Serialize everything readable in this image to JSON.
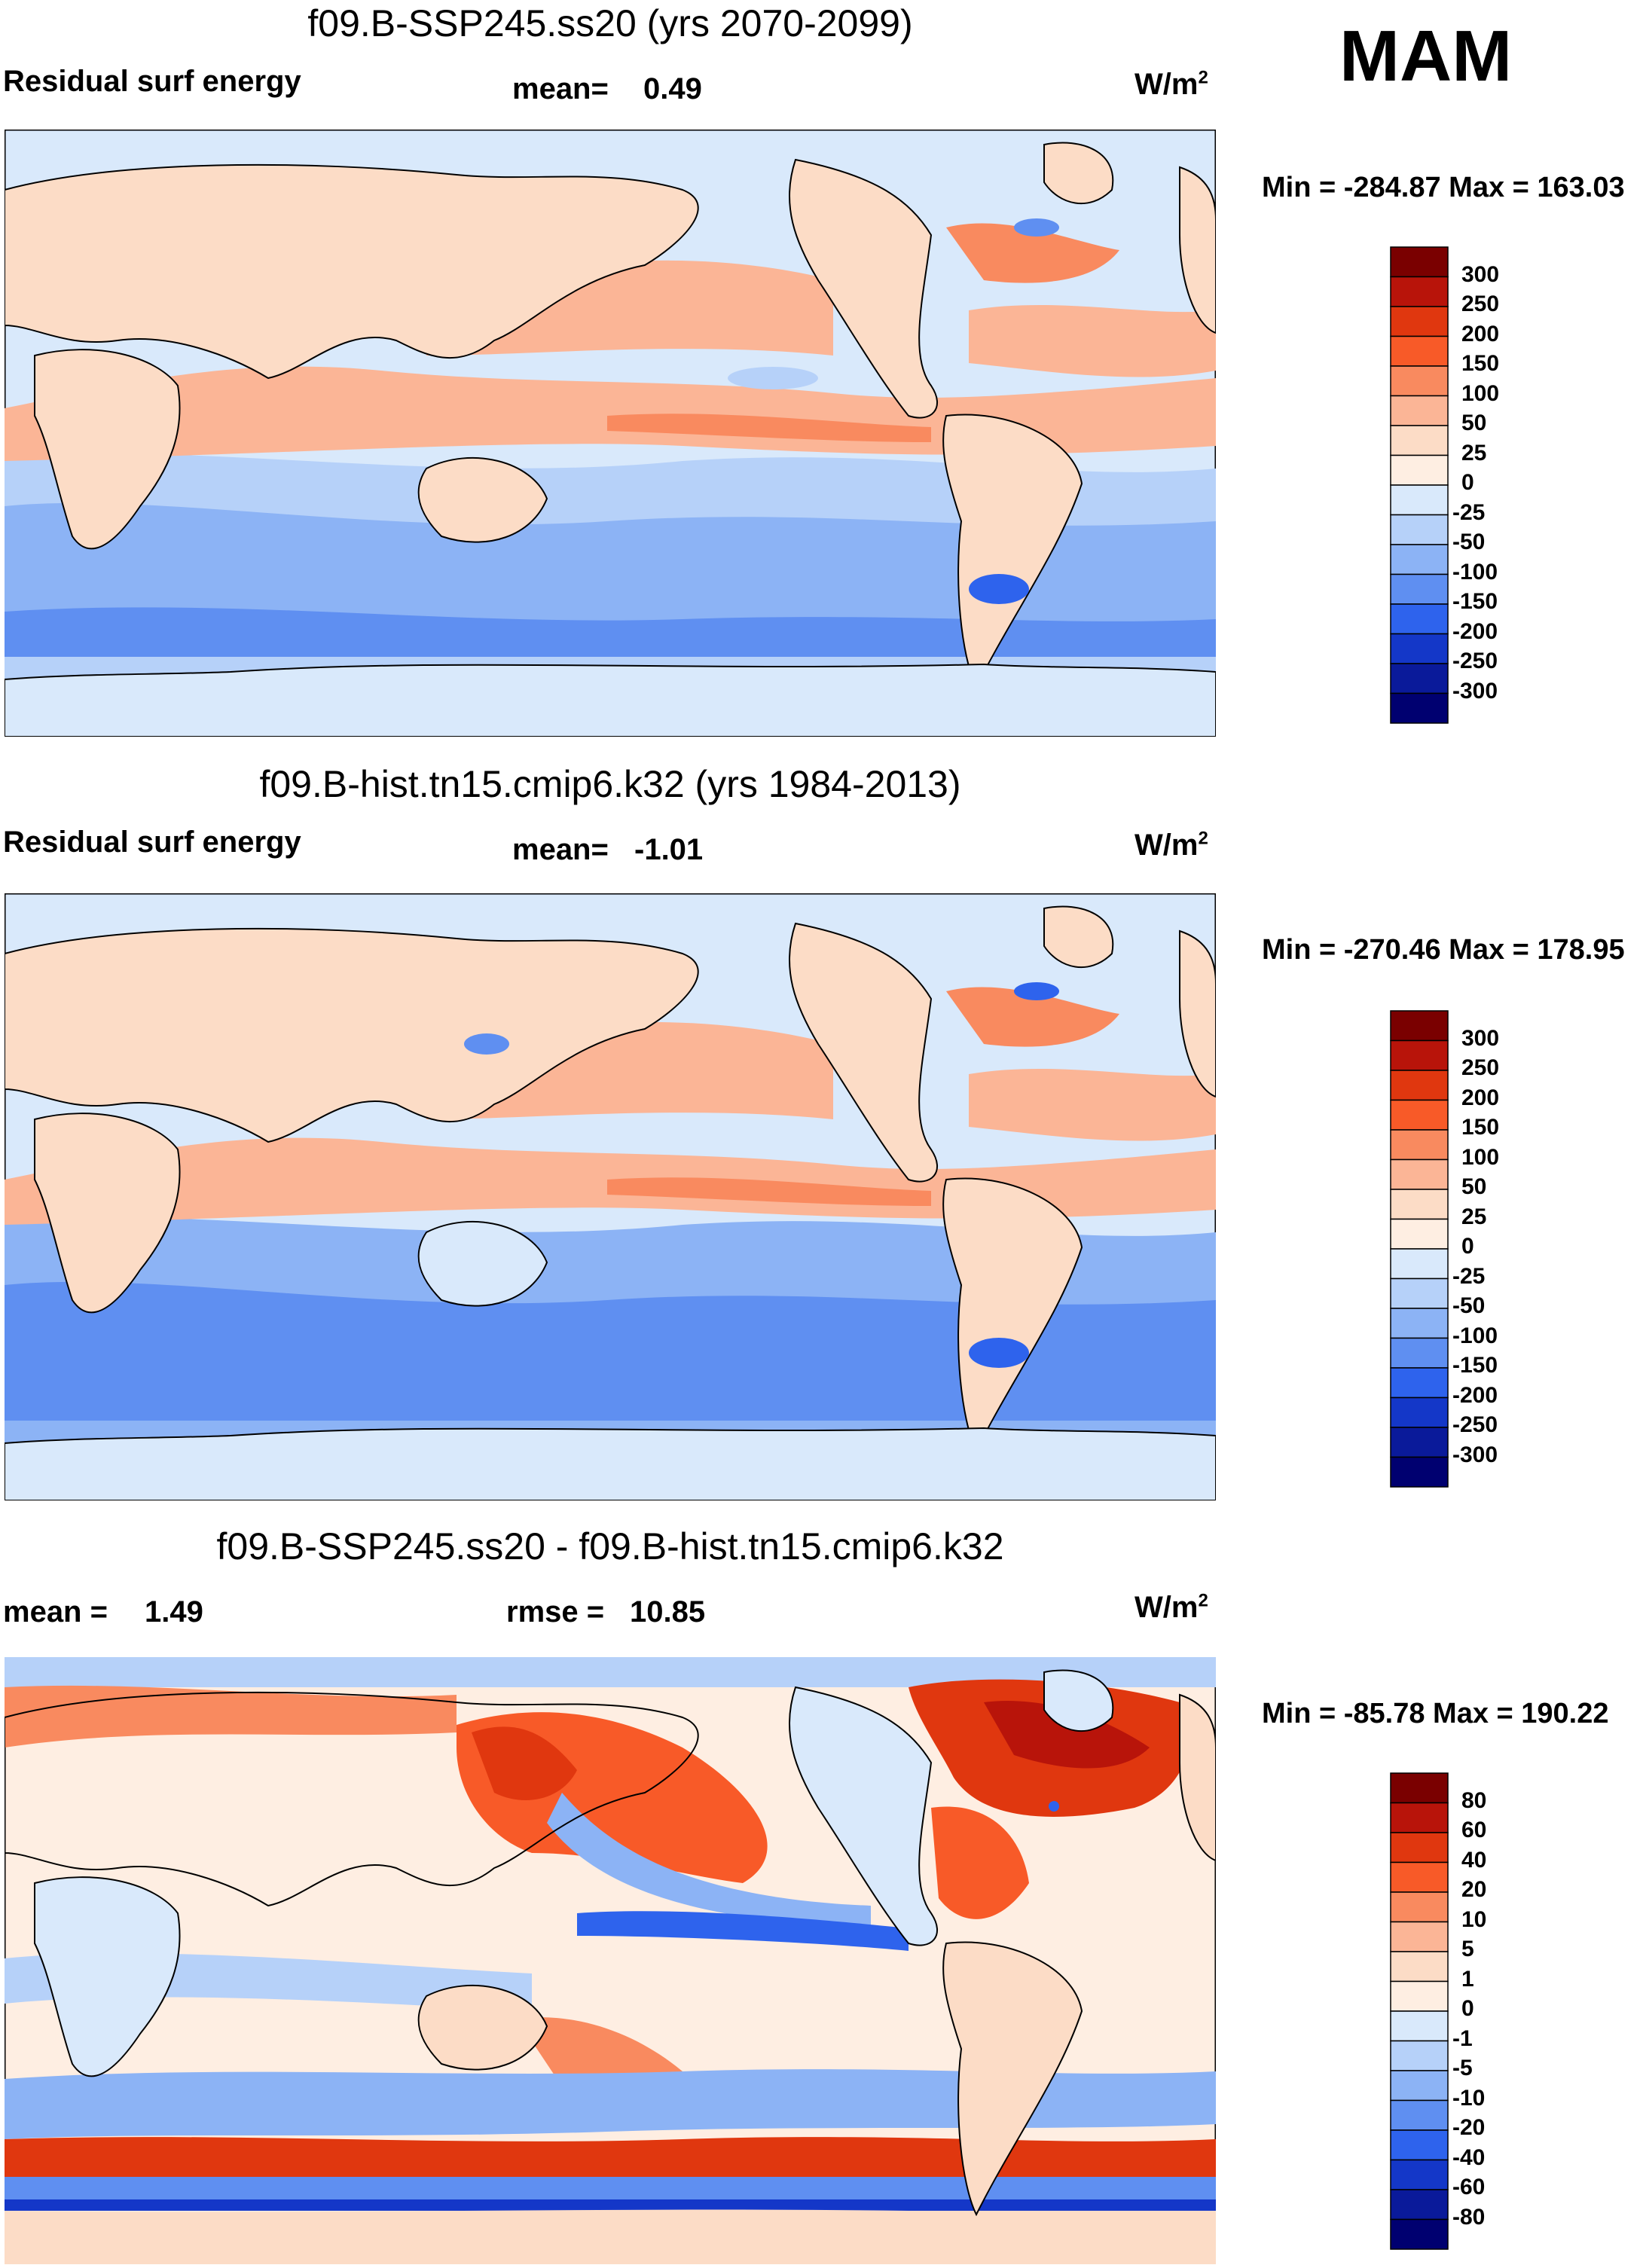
{
  "season": "MAM",
  "units_base": "W/m",
  "units_exp": "2",
  "panels": [
    {
      "title": "f09.B-SSP245.ss20 (yrs 2070-2099)",
      "left_label": "Residual surf energy",
      "stat_label": "mean=",
      "stat_value": "0.49",
      "min_max": "Min = -284.87 Max = 163.03",
      "colorbar": {
        "levels": [
          "300",
          "250",
          "200",
          "150",
          "100",
          "50",
          "25",
          "0",
          "-25",
          "-50",
          "-100",
          "-150",
          "-200",
          "-250",
          "-300"
        ],
        "colors": [
          "#7a0000",
          "#b8140a",
          "#e0370f",
          "#f85a28",
          "#f98a5f",
          "#fbb596",
          "#fcdcc6",
          "#feeee2",
          "#d9e9fb",
          "#b6d1f9",
          "#8cb3f5",
          "#5f8ff1",
          "#2e63ed",
          "#1437c8",
          "#0a1a9a",
          "#000070"
        ]
      }
    },
    {
      "title": "f09.B-hist.tn15.cmip6.k32 (yrs 1984-2013)",
      "left_label": "Residual surf energy",
      "stat_label": "mean=",
      "stat_value": "-1.01",
      "min_max": "Min = -270.46 Max = 178.95",
      "colorbar": {
        "levels": [
          "300",
          "250",
          "200",
          "150",
          "100",
          "50",
          "25",
          "0",
          "-25",
          "-50",
          "-100",
          "-150",
          "-200",
          "-250",
          "-300"
        ],
        "colors": [
          "#7a0000",
          "#b8140a",
          "#e0370f",
          "#f85a28",
          "#f98a5f",
          "#fbb596",
          "#fcdcc6",
          "#feeee2",
          "#d9e9fb",
          "#b6d1f9",
          "#8cb3f5",
          "#5f8ff1",
          "#2e63ed",
          "#1437c8",
          "#0a1a9a",
          "#000070"
        ]
      }
    },
    {
      "title": "f09.B-SSP245.ss20 - f09.B-hist.tn15.cmip6.k32",
      "left_label": "mean =",
      "left_value": "1.49",
      "stat_label": "rmse =",
      "stat_value": "10.85",
      "min_max": "Min = -85.78 Max = 190.22",
      "colorbar": {
        "levels": [
          "80",
          "60",
          "40",
          "20",
          "10",
          "5",
          "1",
          "0",
          "-1",
          "-5",
          "-10",
          "-20",
          "-40",
          "-60",
          "-80"
        ],
        "colors": [
          "#7a0000",
          "#b8140a",
          "#e0370f",
          "#f85a28",
          "#f98a5f",
          "#fbb596",
          "#fcdcc6",
          "#feeee2",
          "#d9e9fb",
          "#b6d1f9",
          "#8cb3f5",
          "#5f8ff1",
          "#2e63ed",
          "#1437c8",
          "#0a1a9a",
          "#000070"
        ]
      }
    }
  ],
  "chart_data": [
    {
      "type": "heatmap",
      "title": "f09.B-SSP245.ss20 (yrs 2070-2099)",
      "variable": "Residual surf energy",
      "units": "W/m2",
      "mean": 0.49,
      "min": -284.87,
      "max": 163.03,
      "contour_levels": [
        -300,
        -250,
        -200,
        -150,
        -100,
        -50,
        -25,
        0,
        25,
        50,
        100,
        150,
        200,
        250,
        300
      ]
    },
    {
      "type": "heatmap",
      "title": "f09.B-hist.tn15.cmip6.k32 (yrs 1984-2013)",
      "variable": "Residual surf energy",
      "units": "W/m2",
      "mean": -1.01,
      "min": -270.46,
      "max": 178.95,
      "contour_levels": [
        -300,
        -250,
        -200,
        -150,
        -100,
        -50,
        -25,
        0,
        25,
        50,
        100,
        150,
        200,
        250,
        300
      ]
    },
    {
      "type": "heatmap",
      "title": "f09.B-SSP245.ss20 - f09.B-hist.tn15.cmip6.k32",
      "units": "W/m2",
      "mean": 1.49,
      "rmse": 10.85,
      "min": -85.78,
      "max": 190.22,
      "contour_levels": [
        -80,
        -60,
        -40,
        -20,
        -10,
        -5,
        -1,
        0,
        1,
        5,
        10,
        20,
        40,
        60,
        80
      ]
    }
  ]
}
